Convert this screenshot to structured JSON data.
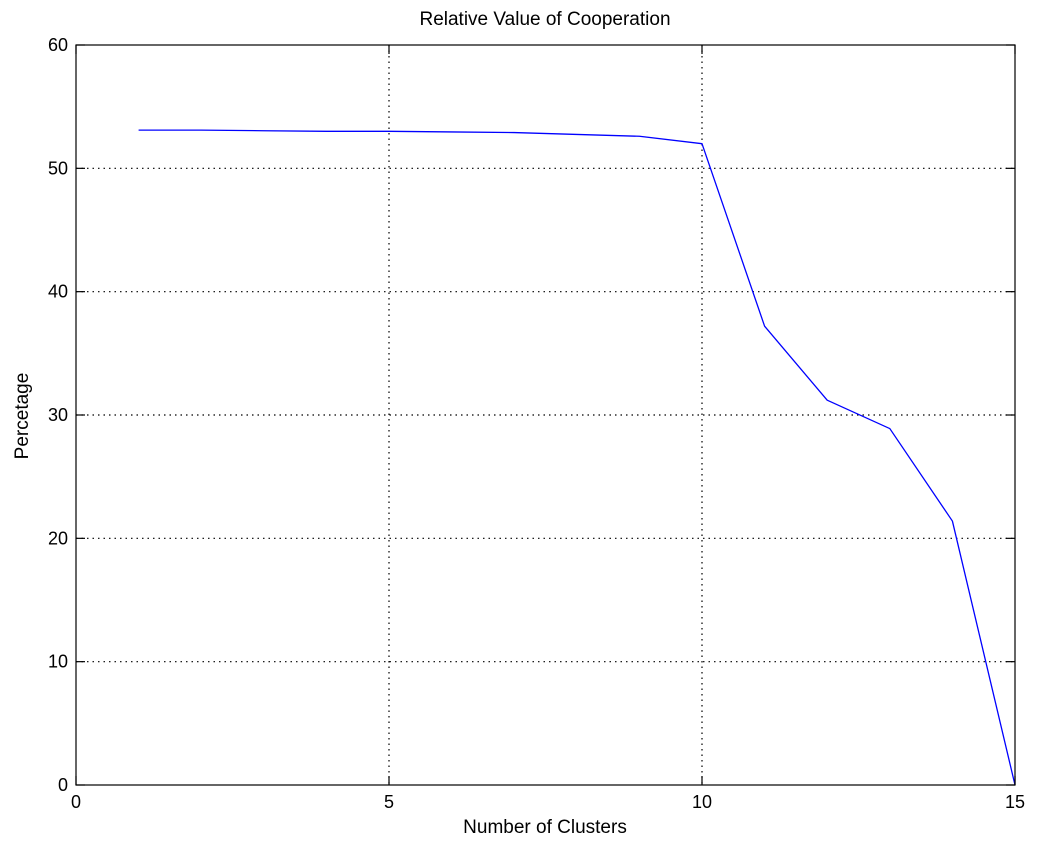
{
  "chart_data": {
    "type": "line",
    "title": "Relative Value of Cooperation",
    "xlabel": "Number of Clusters",
    "ylabel": "Percetage",
    "xlim": [
      0,
      15
    ],
    "ylim": [
      0,
      60
    ],
    "xticks": [
      0,
      5,
      10,
      15
    ],
    "yticks": [
      0,
      10,
      20,
      30,
      40,
      50,
      60
    ],
    "grid": true,
    "series": [
      {
        "color": "#0000ff",
        "x": [
          1,
          2,
          3,
          4,
          5,
          6,
          7,
          8,
          9,
          10,
          11,
          12,
          13,
          14,
          15
        ],
        "y": [
          53.1,
          53.1,
          53.05,
          53.0,
          53.0,
          52.95,
          52.9,
          52.75,
          52.6,
          52.0,
          37.2,
          31.2,
          28.9,
          21.4,
          0.0
        ]
      }
    ]
  }
}
